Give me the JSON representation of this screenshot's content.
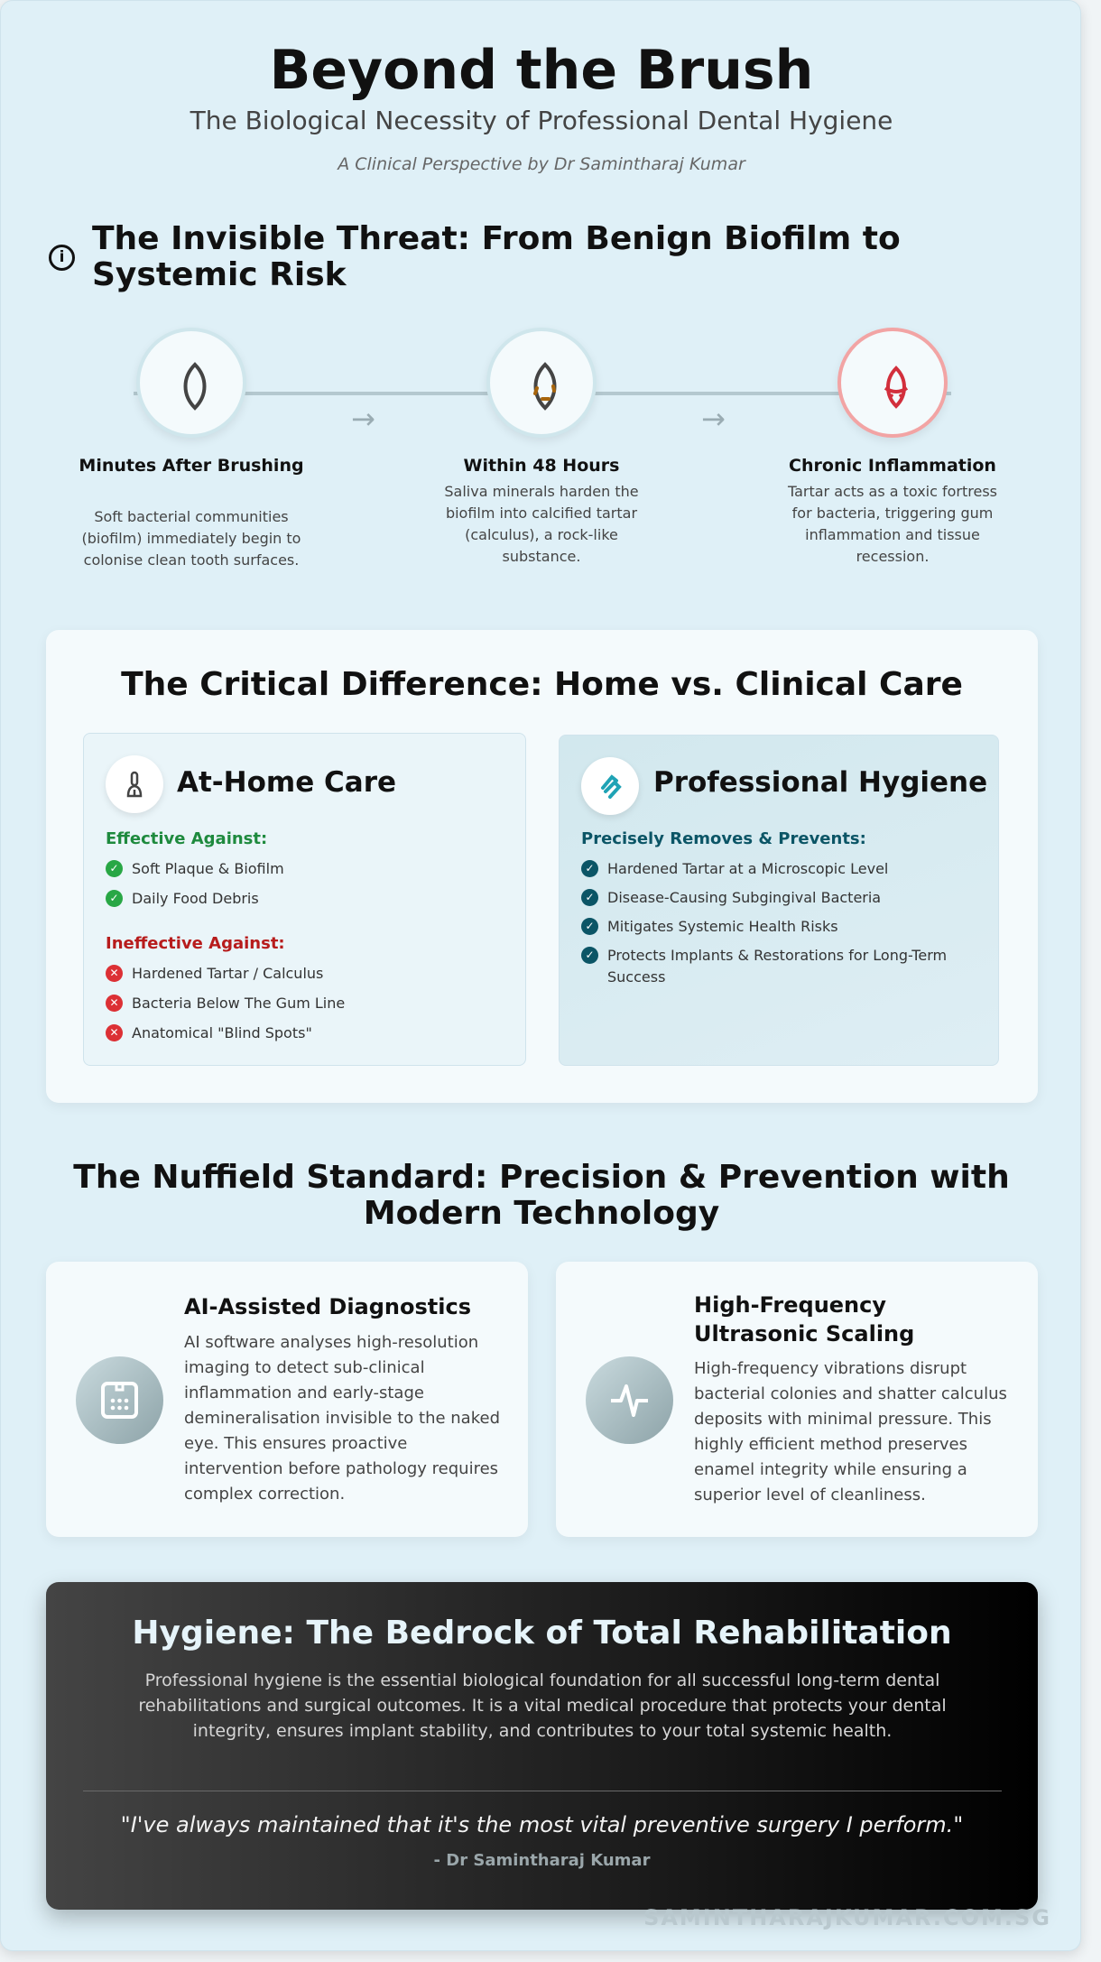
{
  "header": {
    "title": "Beyond the Brush",
    "subtitle": "The Biological Necessity of Professional Dental Hygiene",
    "byline": "A Clinical Perspective by Dr Samintharaj Kumar"
  },
  "threat": {
    "icon": "info-icon",
    "heading": "The Invisible Threat: From Benign Biofilm to Systemic Risk",
    "steps": [
      {
        "icon": "clean-tooth-icon",
        "title": "Minutes After Brushing",
        "desc": "Soft bacterial communities (biofilm) immediately begin to colonise clean tooth surfaces."
      },
      {
        "icon": "tartar-tooth-icon",
        "title": "Within 48 Hours",
        "desc": "Saliva minerals harden the biofilm into calcified tartar (calculus), a rock-like substance."
      },
      {
        "icon": "inflamed-tooth-icon",
        "title": "Chronic Inflammation",
        "desc": "Tartar acts as a toxic fortress for bacteria, triggering gum inflammation and tissue recession."
      }
    ],
    "arrow": "→"
  },
  "comparison": {
    "heading": "The Critical Difference: Home vs. Clinical Care",
    "home": {
      "icon": "toothbrush-icon",
      "title": "At-Home Care",
      "effective_label": "Effective Against:",
      "effective": [
        "Soft Plaque & Biofilm",
        "Daily Food Debris"
      ],
      "ineffective_label": "Ineffective Against:",
      "ineffective": [
        "Hardened Tartar / Calculus",
        "Bacteria Below The Gum Line",
        "Anatomical \"Blind Spots\""
      ]
    },
    "pro": {
      "icon": "dental-tool-icon",
      "title": "Professional Hygiene",
      "label": "Precisely Removes & Prevents:",
      "items": [
        "Hardened Tartar at a Microscopic Level",
        "Disease-Causing Subgingival Bacteria",
        "Mitigates Systemic Health Risks",
        "Protects Implants & Restorations for Long-Term Success"
      ]
    },
    "colors": {
      "green": "#1e8a3e",
      "red": "#b71c1c",
      "teal": "#0b5566"
    }
  },
  "nuffield": {
    "heading": "The Nuffield Standard: Precision & Prevention with Modern Technology",
    "cards": [
      {
        "icon": "ai-scan-icon",
        "title": "AI-Assisted Diagnostics",
        "body": "AI software analyses high-resolution imaging to detect sub-clinical inflammation and early-stage demineralisation invisible to the naked eye. This ensures proactive intervention before pathology requires complex correction."
      },
      {
        "icon": "pulse-wave-icon",
        "title": "High-Frequency Ultrasonic Scaling",
        "body": "High-frequency vibrations disrupt bacterial colonies and shatter calculus deposits with minimal pressure. This highly efficient method preserves enamel integrity while ensuring a superior level of cleanliness."
      }
    ]
  },
  "closing": {
    "title": "Hygiene: The Bedrock of Total Rehabilitation",
    "body": "Professional hygiene is the essential biological foundation for all successful long-term dental rehabilitations and surgical outcomes. It is a vital medical procedure that protects your dental integrity, ensures implant stability, and contributes to your total systemic health.",
    "quote": "\"I've always maintained that it's the most vital preventive surgery I perform.\"",
    "author": "- Dr Samintharaj Kumar"
  },
  "watermark": "SAMINTHARAJKUMAR.COM.SG"
}
